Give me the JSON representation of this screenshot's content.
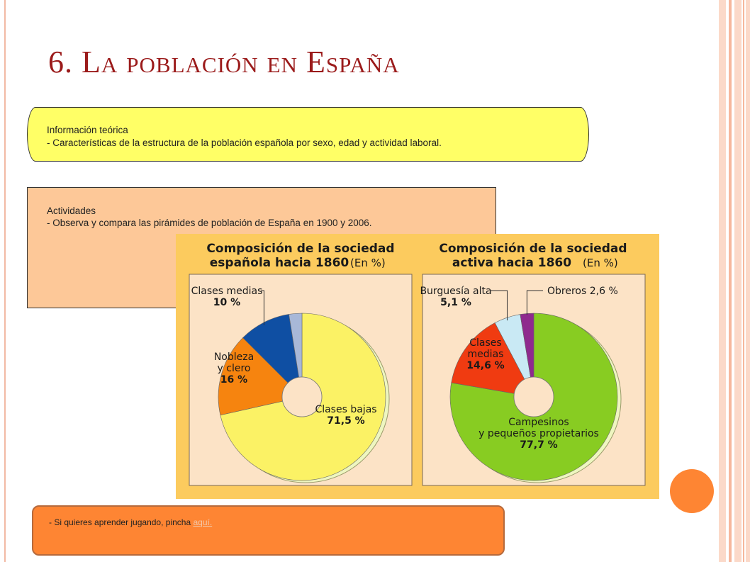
{
  "slide": {
    "title": "6. La población en España"
  },
  "info_box": {
    "heading": "Información teórica",
    "text": "- Características de la estructura de la población española por sexo, edad y actividad laboral."
  },
  "activities_box": {
    "heading": "Actividades",
    "text": "- Observa y compara las pirámides de población de España en 1900 y 2006."
  },
  "play_box": {
    "text": "- Si quieres aprender jugando, pincha ",
    "link_label": "aquí."
  },
  "colors": {
    "title": "#9b1b1b",
    "info_box_bg": "#ffff66",
    "activities_box_bg": "#fdc898",
    "play_box_bg": "#fe8533",
    "accent_circle": "#fe8533",
    "chart_frame": "#fccb5e",
    "chart_inner_bg": "#fce3c6"
  },
  "chart_data": [
    {
      "type": "pie",
      "title": "Composición de la sociedad",
      "subtitle": "española hacia 1860",
      "unit_note": "(En %)",
      "slices": [
        {
          "name": "Clases bajas",
          "value": 71.5,
          "label": "71,5 %",
          "color": "#fbf265"
        },
        {
          "name": "Nobleza y clero",
          "value": 16,
          "label": "16 %",
          "color": "#f6840f"
        },
        {
          "name": "Clases medias",
          "value": 10,
          "label": "10 %",
          "color": "#0f4fa3"
        },
        {
          "name": "",
          "value": 2.5,
          "label": "",
          "color": "#a8b8d8"
        }
      ]
    },
    {
      "type": "pie",
      "title": "Composición de la sociedad",
      "subtitle": "activa hacia 1860",
      "unit_note": "(En %)",
      "slices": [
        {
          "name": "Campesinos y pequeños propietarios",
          "value": 77.7,
          "label": "77,7 %",
          "color": "#88cc22"
        },
        {
          "name": "Clases medias",
          "value": 14.6,
          "label": "14,6 %",
          "color": "#f03b11"
        },
        {
          "name": "Burguesía alta",
          "value": 5.1,
          "label": "5,1 %",
          "color": "#c9e9f4"
        },
        {
          "name": "Obreros",
          "value": 2.6,
          "label": "2,6 %",
          "color": "#8f2a8e"
        }
      ]
    }
  ]
}
